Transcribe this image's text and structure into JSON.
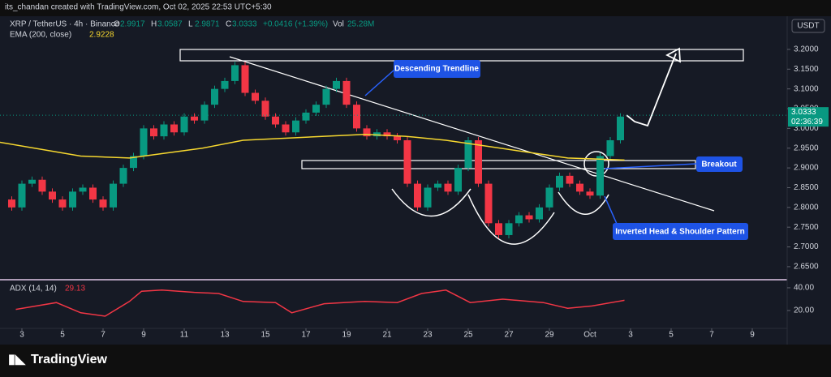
{
  "header": {
    "credit": "its_chandan created with TradingView.com, Oct 02, 2025 22:53 UTC+5:30",
    "brand": "TradingView"
  },
  "chart_data": {
    "type": "candlestick",
    "symbol": "XRP / TetherUS · 4h · Binance",
    "ohlc": [
      {
        "label": "O",
        "value": 2.9917
      },
      {
        "label": "H",
        "value": 3.0587
      },
      {
        "label": "L",
        "value": 2.9871
      },
      {
        "label": "C",
        "value": 3.0333
      }
    ],
    "change": "+0.0416 (+1.39%)",
    "volume": {
      "label": "Vol",
      "value": "25.28M"
    },
    "currency": "USDT",
    "last_price": 3.0333,
    "countdown": "02:36:39",
    "x": [
      2.0,
      2.5,
      3.0,
      3.5,
      4.0,
      4.5,
      5.0,
      5.5,
      6.0,
      6.5,
      7.0,
      7.5,
      8.0,
      8.5,
      9.0,
      9.5,
      10.0,
      10.5,
      11.0,
      11.5,
      12.0,
      12.5,
      13.0,
      13.5,
      14.0,
      14.5,
      15.0,
      15.5,
      16.0,
      16.5,
      17.0,
      17.5,
      18.0,
      18.5,
      19.0,
      19.5,
      20.0,
      20.5,
      21.0,
      21.5,
      22.0,
      22.5,
      23.0,
      23.5,
      24.0,
      24.5,
      25.0,
      25.5,
      26.0,
      26.5,
      27.0,
      27.5,
      28.0,
      28.5,
      29.0,
      29.5,
      30.0,
      30.5,
      31.0,
      31.5,
      32.0,
      32.5
    ],
    "close": [
      2.82,
      2.8,
      2.86,
      2.87,
      2.84,
      2.82,
      2.8,
      2.84,
      2.85,
      2.82,
      2.8,
      2.86,
      2.9,
      2.93,
      3.0,
      2.98,
      3.01,
      2.99,
      3.03,
      3.02,
      3.06,
      3.1,
      3.12,
      3.16,
      3.09,
      3.07,
      3.03,
      3.01,
      2.99,
      3.02,
      3.04,
      3.06,
      3.1,
      3.12,
      3.06,
      3.0,
      2.98,
      2.99,
      2.98,
      2.97,
      2.86,
      2.8,
      2.85,
      2.86,
      2.84,
      2.9,
      2.97,
      2.86,
      2.76,
      2.73,
      2.76,
      2.78,
      2.77,
      2.8,
      2.85,
      2.88,
      2.86,
      2.84,
      2.83,
      2.93,
      2.97,
      3.03
    ],
    "up_color": "#089981",
    "down_color": "#f23645",
    "ema": {
      "name": "EMA (200, close)",
      "last": 2.9228,
      "color": "#f7d82f",
      "x": [
        1.9,
        5.9,
        8.3,
        11.9,
        13.9,
        17.9,
        19.9,
        21.9,
        23.9,
        25.9,
        27.9,
        29.9,
        32.7
      ],
      "values": [
        2.965,
        2.93,
        2.925,
        2.95,
        2.97,
        2.98,
        2.985,
        2.98,
        2.97,
        2.955,
        2.94,
        2.925,
        2.92
      ]
    },
    "xlim": [
      1.92,
      40.72
    ],
    "xticks": [
      3,
      5,
      7,
      9,
      11,
      13,
      15,
      17,
      19,
      21,
      23,
      25,
      27,
      29,
      {
        "value": 31,
        "label": "Oct"
      },
      {
        "value": 33,
        "label": "3"
      },
      {
        "value": 35,
        "label": "5"
      },
      {
        "value": 37,
        "label": "7"
      },
      {
        "value": 39,
        "label": "9"
      }
    ],
    "ylim": [
      2.617,
      3.284
    ],
    "yticks": [
      {
        "value": 3.2,
        "label": "3.2000"
      },
      {
        "value": 3.15,
        "label": "3.1500"
      },
      {
        "value": 3.1,
        "label": "3.1000"
      },
      {
        "value": 3.05,
        "label": "3.0500"
      },
      {
        "value": 3.0,
        "label": "3.0000"
      },
      {
        "value": 2.95,
        "label": "2.9500"
      },
      {
        "value": 2.9,
        "label": "2.9000"
      },
      {
        "value": 2.85,
        "label": "2.8500"
      },
      {
        "value": 2.8,
        "label": "2.8000"
      },
      {
        "value": 2.75,
        "label": "2.7500"
      },
      {
        "value": 2.7,
        "label": "2.7000"
      },
      {
        "value": 2.65,
        "label": "2.6500"
      }
    ],
    "annotations": {
      "trendline": "Descending Trendline",
      "breakout": "Breakout",
      "pattern": "Inverted Head & Shoulder Pattern"
    },
    "adx": {
      "name": "ADX (14, 14)",
      "last": 29.13,
      "color": "#f23645",
      "x": [
        2.7,
        4.7,
        5.9,
        7.1,
        8.3,
        8.9,
        9.9,
        11.5,
        12.7,
        13.9,
        15.5,
        16.3,
        17.9,
        19.9,
        21.5,
        22.7,
        23.9,
        25.1,
        26.7,
        28.7,
        29.9,
        31.1,
        32.7
      ],
      "values": [
        21,
        27,
        18,
        15,
        28,
        37,
        38,
        36,
        35,
        28,
        27,
        18,
        26,
        28,
        27,
        35,
        38,
        27,
        30,
        27,
        22,
        24,
        29
      ],
      "ylim": [
        4.3,
        47.1
      ],
      "yticks": [
        {
          "value": 40,
          "label": "40.00"
        },
        {
          "value": 20,
          "label": "20.00"
        }
      ]
    }
  }
}
